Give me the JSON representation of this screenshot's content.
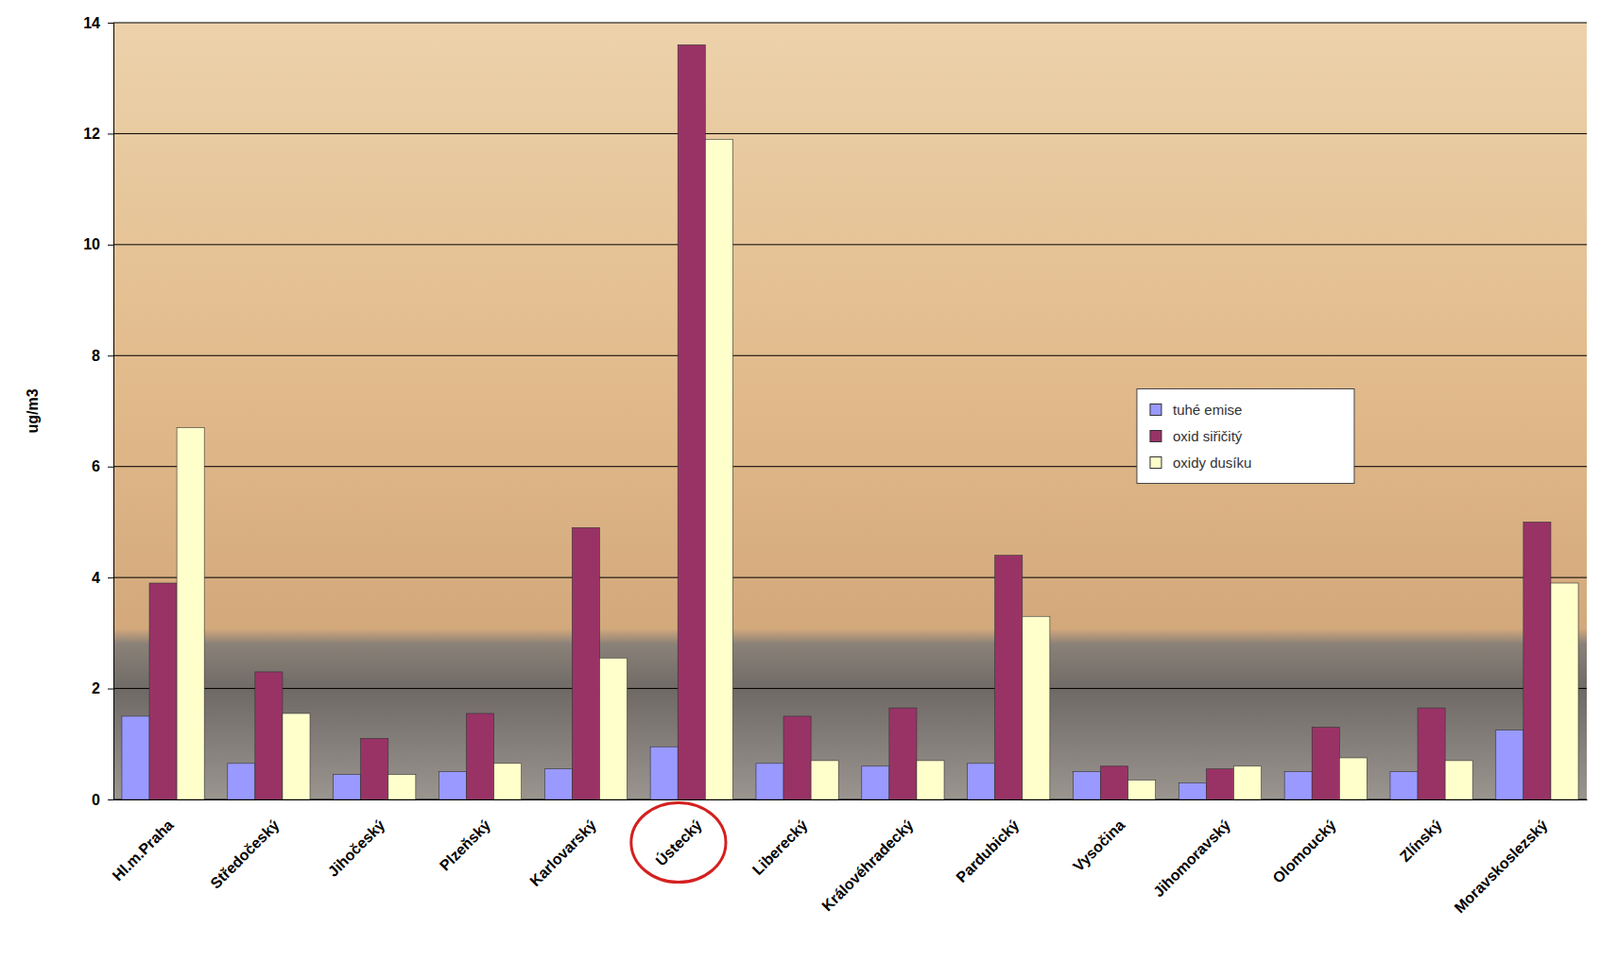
{
  "chart_data": {
    "type": "bar",
    "y_label": "ug/m3",
    "categories": [
      "Hl.m.Praha",
      "Středočeský",
      "Jihočeský",
      "Plzeňský",
      "Karlovarský",
      "Ústecký",
      "Liberecký",
      "Královéhradecký",
      "Pardubický",
      "Vysočina",
      "Jihomoravský",
      "Olomoucký",
      "Zlínský",
      "Moravskoslezský"
    ],
    "series": [
      {
        "name": "tuhé emise",
        "color": "#9999ff",
        "values": [
          1.5,
          0.65,
          0.45,
          0.5,
          0.55,
          0.95,
          0.65,
          0.6,
          0.65,
          0.5,
          0.3,
          0.5,
          0.5,
          1.25
        ]
      },
      {
        "name": "oxid siřičitý",
        "color": "#993366",
        "values": [
          3.9,
          2.3,
          1.1,
          1.55,
          4.9,
          13.6,
          1.5,
          1.65,
          4.4,
          0.6,
          0.55,
          1.3,
          1.65,
          5.0
        ]
      },
      {
        "name": "oxidy dusíku",
        "color": "#ffffcc",
        "values": [
          6.7,
          1.55,
          0.45,
          0.65,
          2.55,
          11.9,
          0.7,
          0.7,
          3.3,
          0.35,
          0.6,
          0.75,
          0.7,
          3.9
        ]
      }
    ],
    "ylim": [
      0,
      14
    ],
    "yticks": [
      0,
      2,
      4,
      6,
      8,
      10,
      12,
      14
    ],
    "grid": true,
    "legend": "right"
  }
}
